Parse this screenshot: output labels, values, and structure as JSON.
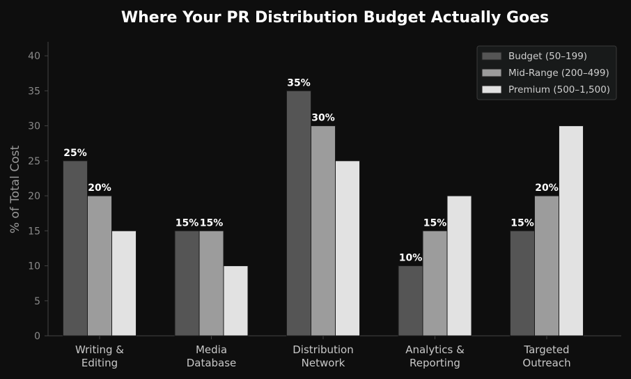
{
  "chart_data": {
    "type": "bar",
    "title": "Where Your PR Distribution Budget Actually Goes",
    "xlabel": "",
    "ylabel": "% of Total Cost",
    "ylim": [
      0,
      42
    ],
    "yticks": [
      0,
      5,
      10,
      15,
      20,
      25,
      30,
      35,
      40
    ],
    "categories": [
      [
        "Writing &",
        "Editing"
      ],
      [
        "Media",
        "Database"
      ],
      [
        "Distribution",
        "Network"
      ],
      [
        "Analytics &",
        "Reporting"
      ],
      [
        "Targeted",
        "Outreach"
      ]
    ],
    "series": [
      {
        "name": "Budget (50–199)",
        "color": "#555555",
        "values": [
          25,
          15,
          35,
          10,
          15
        ],
        "labels": [
          "25%",
          "15%",
          "35%",
          "10%",
          "15%"
        ]
      },
      {
        "name": "Mid-Range (200–499)",
        "color": "#9c9c9c",
        "values": [
          20,
          15,
          30,
          15,
          20
        ],
        "labels": [
          "20%",
          "15%",
          "30%",
          "15%",
          "20%"
        ]
      },
      {
        "name": "Premium (500–1,500)",
        "color": "#e2e2e2",
        "values": [
          15,
          10,
          25,
          20,
          30
        ],
        "labels": [
          "",
          "",
          "",
          "",
          ""
        ]
      }
    ],
    "legend_position": "top-right",
    "grid": false
  }
}
